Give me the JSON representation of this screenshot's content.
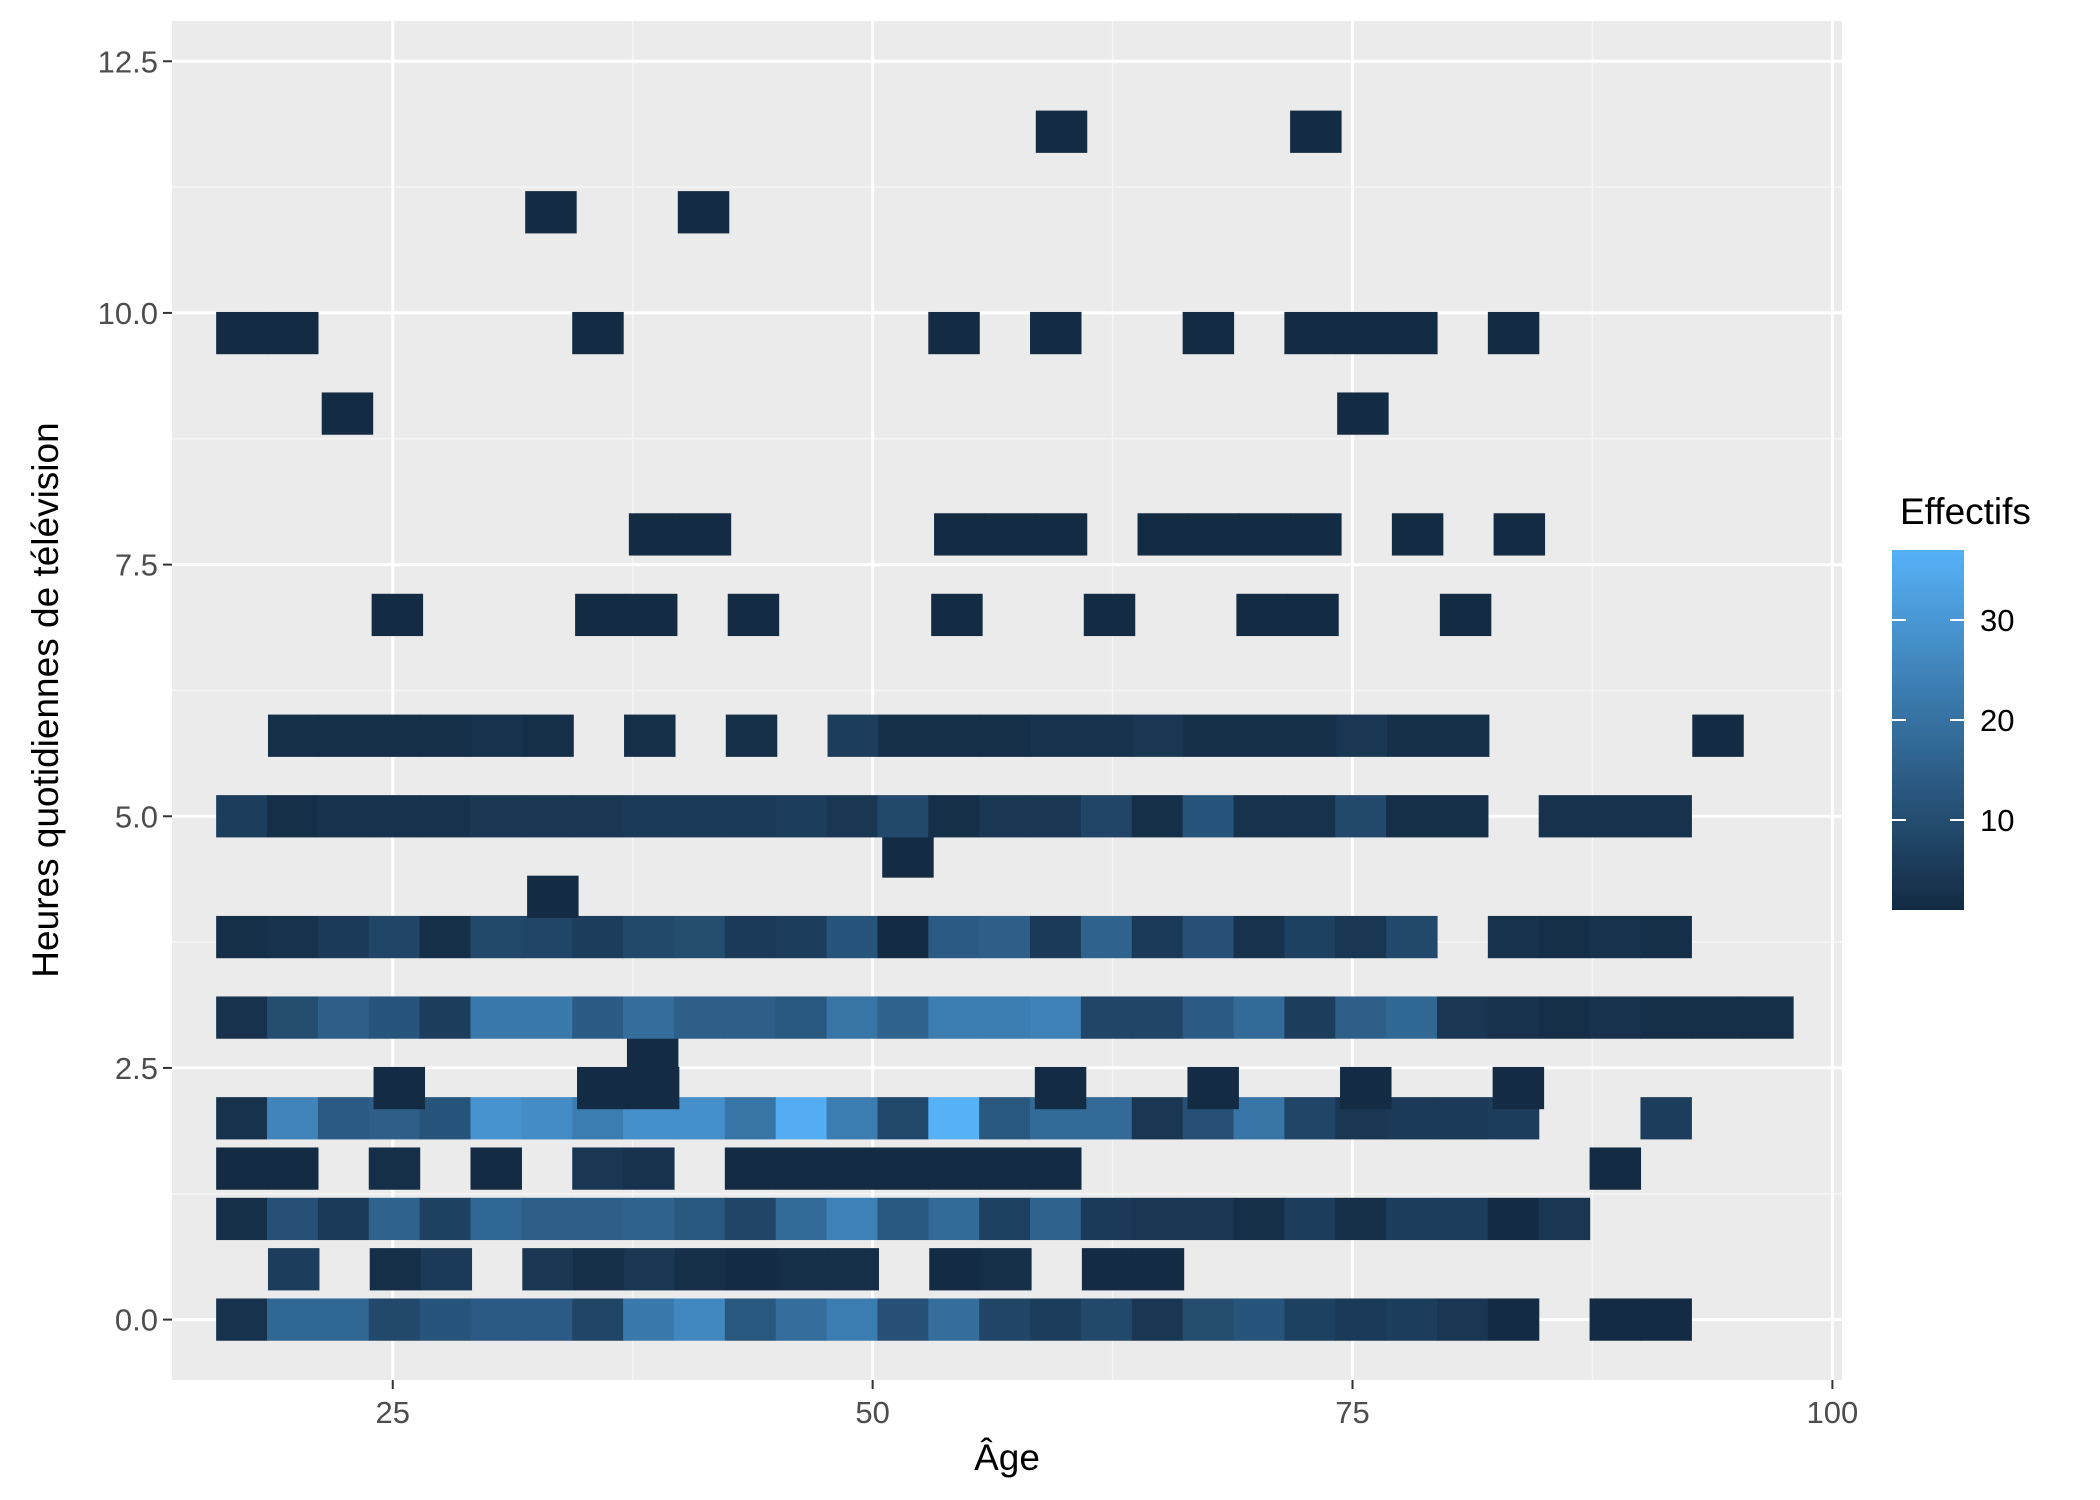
{
  "chart_data": {
    "type": "heatmap",
    "xlabel": "Âge",
    "ylabel": "Heures quotidiennes de télévision",
    "xlim": [
      13.5,
      100.5
    ],
    "ylim": [
      -0.6,
      12.9
    ],
    "x_ticks": [
      25,
      50,
      75,
      100
    ],
    "x_tick_labels": [
      "25",
      "50",
      "75",
      "100"
    ],
    "y_ticks": [
      0,
      2.5,
      5,
      7.5,
      10,
      12.5
    ],
    "y_tick_labels": [
      "0.0",
      "2.5",
      "5.0",
      "7.5",
      "10.0",
      "12.5"
    ],
    "bin_width_x": 2.65,
    "bin_height_y": 0.42,
    "grid": true,
    "legend": {
      "title": "Effectifs",
      "position": "right",
      "breaks": [
        10,
        20,
        30
      ],
      "break_labels": [
        "10",
        "20",
        "30"
      ],
      "min": 1,
      "max": 37,
      "color_low": "#132b43",
      "color_high": "#56b1f7"
    },
    "colors": {
      "panel_background": "#ebebeb",
      "grid_major": "#ffffff",
      "grid_minor": "#f5f5f5"
    },
    "rows": [
      {
        "y": 0.0,
        "x0": 15.8,
        "counts": [
          3,
          17,
          17,
          9,
          12,
          14,
          14,
          8,
          22,
          26,
          13,
          19,
          23,
          11,
          19,
          8,
          6,
          9,
          4,
          10,
          12,
          7,
          5,
          6,
          4,
          1,
          0,
          1,
          1
        ]
      },
      {
        "y": 0.5,
        "x0": 18.5,
        "counts": [
          6,
          0,
          2,
          5,
          0,
          4,
          2,
          4,
          2,
          1,
          2,
          2,
          0,
          1,
          2,
          0,
          1,
          1
        ]
      },
      {
        "y": 1.0,
        "x0": 15.8,
        "counts": [
          2,
          11,
          5,
          16,
          7,
          17,
          15,
          15,
          16,
          13,
          8,
          18,
          24,
          13,
          18,
          7,
          16,
          5,
          4,
          4,
          2,
          6,
          2,
          6,
          6,
          1,
          4
        ]
      },
      {
        "y": 1.5,
        "x0": 15.8,
        "counts": [
          1,
          1,
          0,
          2,
          0,
          1,
          0,
          4,
          3,
          0,
          1,
          1,
          1,
          1,
          1,
          1,
          1,
          0,
          0,
          0,
          0,
          0,
          0,
          0,
          0,
          0,
          0,
          1
        ]
      },
      {
        "y": 2.0,
        "x0": 15.8,
        "counts": [
          3,
          25,
          14,
          15,
          12,
          29,
          27,
          23,
          28,
          28,
          21,
          36,
          23,
          9,
          37,
          13,
          18,
          18,
          4,
          11,
          21,
          8,
          4,
          5,
          5,
          6,
          0,
          0,
          6
        ]
      },
      {
        "y": 2.3,
        "x0": 24.0,
        "counts": [
          1,
          0,
          0,
          0,
          1,
          1,
          0,
          0,
          0,
          0,
          0,
          0,
          0,
          1,
          0,
          0,
          1,
          0,
          0,
          1,
          0,
          0,
          1
        ]
      },
      {
        "y": 2.7,
        "x0": 37.2,
        "counts": [
          1
        ]
      },
      {
        "y": 3.0,
        "x0": 15.8,
        "counts": [
          3,
          10,
          15,
          12,
          6,
          22,
          22,
          14,
          19,
          15,
          15,
          13,
          21,
          16,
          23,
          23,
          24,
          8,
          8,
          14,
          18,
          6,
          15,
          17,
          4,
          3,
          2,
          3,
          2,
          2,
          2
        ]
      },
      {
        "y": 3.8,
        "x0": 15.8,
        "counts": [
          2,
          3,
          5,
          8,
          2,
          9,
          8,
          6,
          9,
          10,
          5,
          6,
          12,
          1,
          14,
          15,
          5,
          16,
          5,
          11,
          3,
          7,
          4,
          9,
          0,
          3,
          2,
          3,
          2
        ]
      },
      {
        "y": 4.2,
        "x0": 32.0,
        "counts": [
          1
        ]
      },
      {
        "y": 4.6,
        "x0": 50.5,
        "counts": [
          1
        ]
      },
      {
        "y": 5.0,
        "x0": 15.8,
        "counts": [
          6,
          2,
          3,
          3,
          3,
          4,
          4,
          4,
          5,
          5,
          5,
          6,
          4,
          9,
          2,
          4,
          4,
          8,
          2,
          12,
          3,
          3,
          9,
          2,
          2,
          0,
          3,
          3,
          3
        ]
      },
      {
        "y": 5.8,
        "x0": 18.5,
        "counts": [
          2,
          2,
          2,
          2,
          3,
          2,
          0,
          2,
          0,
          2,
          0,
          6,
          2,
          2,
          2,
          3,
          3,
          4,
          2,
          2,
          2,
          4,
          2,
          2,
          0,
          0,
          0,
          0,
          1
        ]
      },
      {
        "y": 7.0,
        "x0": 23.9,
        "counts": [
          1,
          0,
          0,
          0,
          1,
          1,
          0,
          1,
          0,
          0,
          0,
          1,
          0,
          0,
          1,
          0,
          0,
          1,
          1,
          0,
          0,
          1
        ]
      },
      {
        "y": 7.8,
        "x0": 37.3,
        "counts": [
          1,
          1,
          0,
          0,
          0,
          0,
          1,
          1,
          1,
          0,
          1,
          1,
          1,
          1,
          0,
          1,
          0,
          1
        ]
      },
      {
        "y": 9.0,
        "x0": 21.3,
        "counts": [
          1
        ]
      },
      {
        "y": 9.0,
        "x0": 74.2,
        "counts": [
          1
        ]
      },
      {
        "y": 9.8,
        "x0": 15.8,
        "counts": [
          1,
          1,
          0,
          0,
          0,
          0,
          0,
          1,
          0,
          0,
          0,
          0,
          0,
          0,
          1,
          0,
          1,
          0,
          0,
          1,
          0,
          1,
          1,
          1,
          0,
          1
        ]
      },
      {
        "y": 11.0,
        "x0": 31.9,
        "counts": [
          1,
          0,
          0,
          1
        ]
      },
      {
        "y": 11.8,
        "x0": 58.5,
        "counts": [
          1,
          0,
          0,
          0,
          0,
          1
        ]
      }
    ]
  }
}
